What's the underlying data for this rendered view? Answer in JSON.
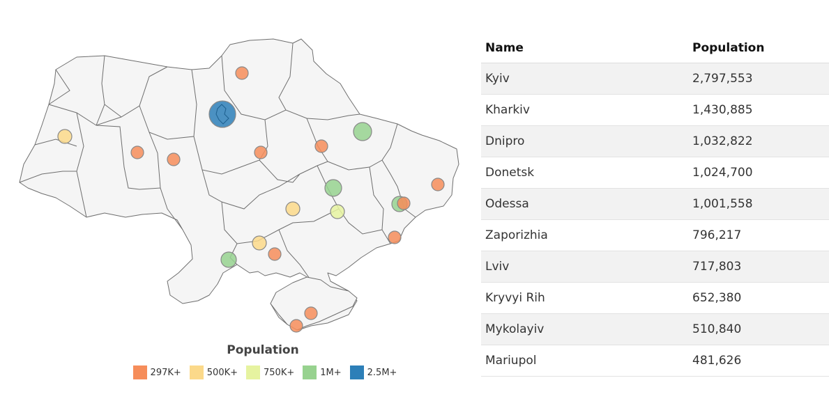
{
  "legend": {
    "title": "Population",
    "items": [
      {
        "label": "297K+",
        "color": "#f68d5a"
      },
      {
        "label": "500K+",
        "color": "#fbd98a"
      },
      {
        "label": "750K+",
        "color": "#e6f3a0"
      },
      {
        "label": "1M+",
        "color": "#97d28f"
      },
      {
        "label": "2.5M+",
        "color": "#2d7fb8"
      }
    ]
  },
  "table": {
    "headers": {
      "name": "Name",
      "population": "Population"
    },
    "rows": [
      {
        "name": "Kyiv",
        "population": "2,797,553"
      },
      {
        "name": "Kharkiv",
        "population": "1,430,885"
      },
      {
        "name": "Dnipro",
        "population": "1,032,822"
      },
      {
        "name": "Donetsk",
        "population": "1,024,700"
      },
      {
        "name": "Odessa",
        "population": "1,001,558"
      },
      {
        "name": "Zaporizhia",
        "population": "796,217"
      },
      {
        "name": "Lviv",
        "population": "717,803"
      },
      {
        "name": "Kryvyi Rih",
        "population": "652,380"
      },
      {
        "name": "Mykolayiv",
        "population": "510,840"
      },
      {
        "name": "Mariupol",
        "population": "481,626"
      }
    ]
  }
}
